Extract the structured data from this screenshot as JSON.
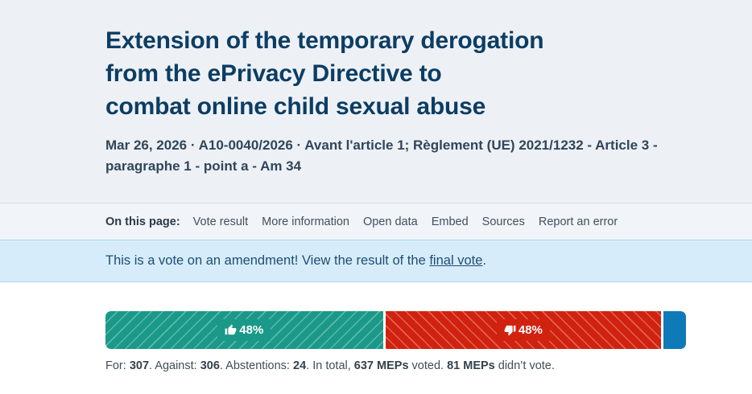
{
  "header": {
    "title_lines": [
      "Extension of the temporary derogation",
      "from the ePrivacy Directive to",
      "combat online child sexual abuse"
    ],
    "subtitle": "Mar 26, 2026 · A10-0040/2026 · Avant l'article 1; Règlement (UE) 2021/1232 - Article 3 - paragraphe 1 - point a - Am 34"
  },
  "page_nav": {
    "label": "On this page:",
    "links": [
      {
        "label": "Vote result"
      },
      {
        "label": "More information"
      },
      {
        "label": "Open data"
      },
      {
        "label": "Embed"
      },
      {
        "label": "Sources"
      },
      {
        "label": "Report an error"
      }
    ]
  },
  "banner": {
    "text_before": "This is a vote on an amendment! View the result of the ",
    "link_label": "final vote",
    "text_after": "."
  },
  "vote_bar": {
    "for": {
      "icon": "thumbs-up-icon",
      "percent_label": "48%",
      "width_percent": 48.2,
      "color": "#1a9988"
    },
    "against": {
      "icon": "thumbs-down-icon",
      "percent_label": "48%",
      "width_percent": 47.9,
      "color": "#d0220f"
    },
    "abstentions": {
      "width_percent": 3.9,
      "color": "#0e7ab8"
    }
  },
  "stats": {
    "segments": [
      {
        "text": "For: ",
        "bold": false
      },
      {
        "text": "307",
        "bold": true
      },
      {
        "text": ". Against: ",
        "bold": false
      },
      {
        "text": "306",
        "bold": true
      },
      {
        "text": ". Abstentions: ",
        "bold": false
      },
      {
        "text": "24",
        "bold": true
      },
      {
        "text": ". In total, ",
        "bold": false
      },
      {
        "text": "637 MEPs",
        "bold": true
      },
      {
        "text": " voted. ",
        "bold": false
      },
      {
        "text": "81 MEPs",
        "bold": true
      },
      {
        "text": " didn’t vote.",
        "bold": false
      }
    ]
  }
}
